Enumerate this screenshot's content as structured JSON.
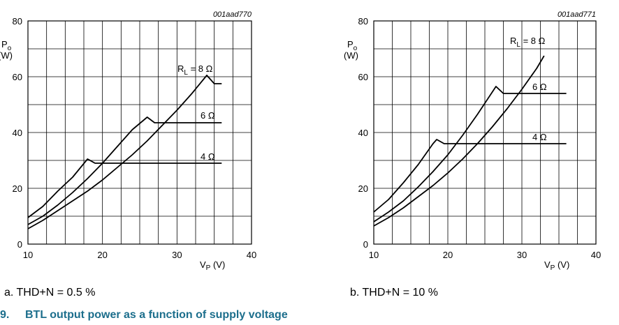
{
  "figure": {
    "number": "9.",
    "title": "BTL output power as a function of supply voltage"
  },
  "captions": {
    "a": "a.  THD+N = 0.5 %",
    "b": "b.  THD+N = 10 %"
  },
  "chart_data": [
    {
      "type": "line",
      "id_code": "001aad770",
      "ylabel": "P",
      "ylabel_sub": "o",
      "ylabel_unit": "(W)",
      "xlabel": "V",
      "xlabel_sub": "P",
      "xlabel_unit": "(V)",
      "xlim": [
        10,
        40
      ],
      "ylim": [
        0,
        80
      ],
      "xticks": [
        10,
        20,
        30,
        40
      ],
      "yticks": [
        0,
        20,
        40,
        60,
        80
      ],
      "grid": true,
      "series": [
        {
          "name": "R_L = 8 Ω",
          "label_main": "R",
          "label_sub": "L",
          "label_rest": " = 8 Ω",
          "points": [
            [
              10,
              5.5
            ],
            [
              12,
              8.5
            ],
            [
              14,
              12
            ],
            [
              16,
              15.5
            ],
            [
              18,
              19
            ],
            [
              20,
              23
            ],
            [
              22,
              27.5
            ],
            [
              24,
              32
            ],
            [
              26,
              37
            ],
            [
              28,
              42.5
            ],
            [
              30,
              48
            ],
            [
              32,
              54
            ],
            [
              34,
              60.5
            ],
            [
              35,
              57.5
            ],
            [
              36,
              57.5
            ]
          ]
        },
        {
          "name": "6 Ω",
          "label_main": "6 Ω",
          "points": [
            [
              10,
              7
            ],
            [
              12,
              10
            ],
            [
              14,
              14
            ],
            [
              16,
              18.5
            ],
            [
              18,
              23.5
            ],
            [
              20,
              29
            ],
            [
              22,
              35
            ],
            [
              24,
              41
            ],
            [
              26,
              45.5
            ],
            [
              27,
              43.5
            ],
            [
              36,
              43.5
            ]
          ]
        },
        {
          "name": "4 Ω",
          "label_main": "4 Ω",
          "points": [
            [
              10,
              9.5
            ],
            [
              12,
              13.5
            ],
            [
              14,
              19
            ],
            [
              16,
              24
            ],
            [
              18,
              30.5
            ],
            [
              19,
              29
            ],
            [
              36,
              29
            ]
          ]
        }
      ]
    },
    {
      "type": "line",
      "id_code": "001aad771",
      "ylabel": "P",
      "ylabel_sub": "o",
      "ylabel_unit": "(W)",
      "xlabel": "V",
      "xlabel_sub": "P",
      "xlabel_unit": "(V)",
      "xlim": [
        10,
        40
      ],
      "ylim": [
        0,
        80
      ],
      "xticks": [
        10,
        20,
        30,
        40
      ],
      "yticks": [
        0,
        20,
        40,
        60,
        80
      ],
      "grid": true,
      "series": [
        {
          "name": "R_L = 8 Ω",
          "label_main": "R",
          "label_sub": "L",
          "label_rest": " = 8 Ω",
          "points": [
            [
              10,
              6.5
            ],
            [
              12,
              9.5
            ],
            [
              14,
              13
            ],
            [
              16,
              17
            ],
            [
              18,
              21
            ],
            [
              20,
              25.5
            ],
            [
              22,
              30.5
            ],
            [
              24,
              36
            ],
            [
              26,
              42
            ],
            [
              28,
              48.5
            ],
            [
              30,
              55.5
            ],
            [
              32,
              63
            ],
            [
              33,
              67.5
            ]
          ]
        },
        {
          "name": "6 Ω",
          "label_main": "6 Ω",
          "points": [
            [
              10,
              8
            ],
            [
              12,
              11.5
            ],
            [
              14,
              15.5
            ],
            [
              16,
              20.5
            ],
            [
              18,
              26
            ],
            [
              20,
              32
            ],
            [
              22,
              39
            ],
            [
              24,
              46.5
            ],
            [
              26,
              54.5
            ],
            [
              26.5,
              56.5
            ],
            [
              27.5,
              54
            ],
            [
              36,
              54
            ]
          ]
        },
        {
          "name": "4 Ω",
          "label_main": "4 Ω",
          "points": [
            [
              10,
              11.5
            ],
            [
              12,
              16
            ],
            [
              14,
              22
            ],
            [
              16,
              28.5
            ],
            [
              18,
              36
            ],
            [
              18.5,
              37.5
            ],
            [
              19.5,
              36
            ],
            [
              36,
              36
            ]
          ]
        }
      ]
    }
  ]
}
